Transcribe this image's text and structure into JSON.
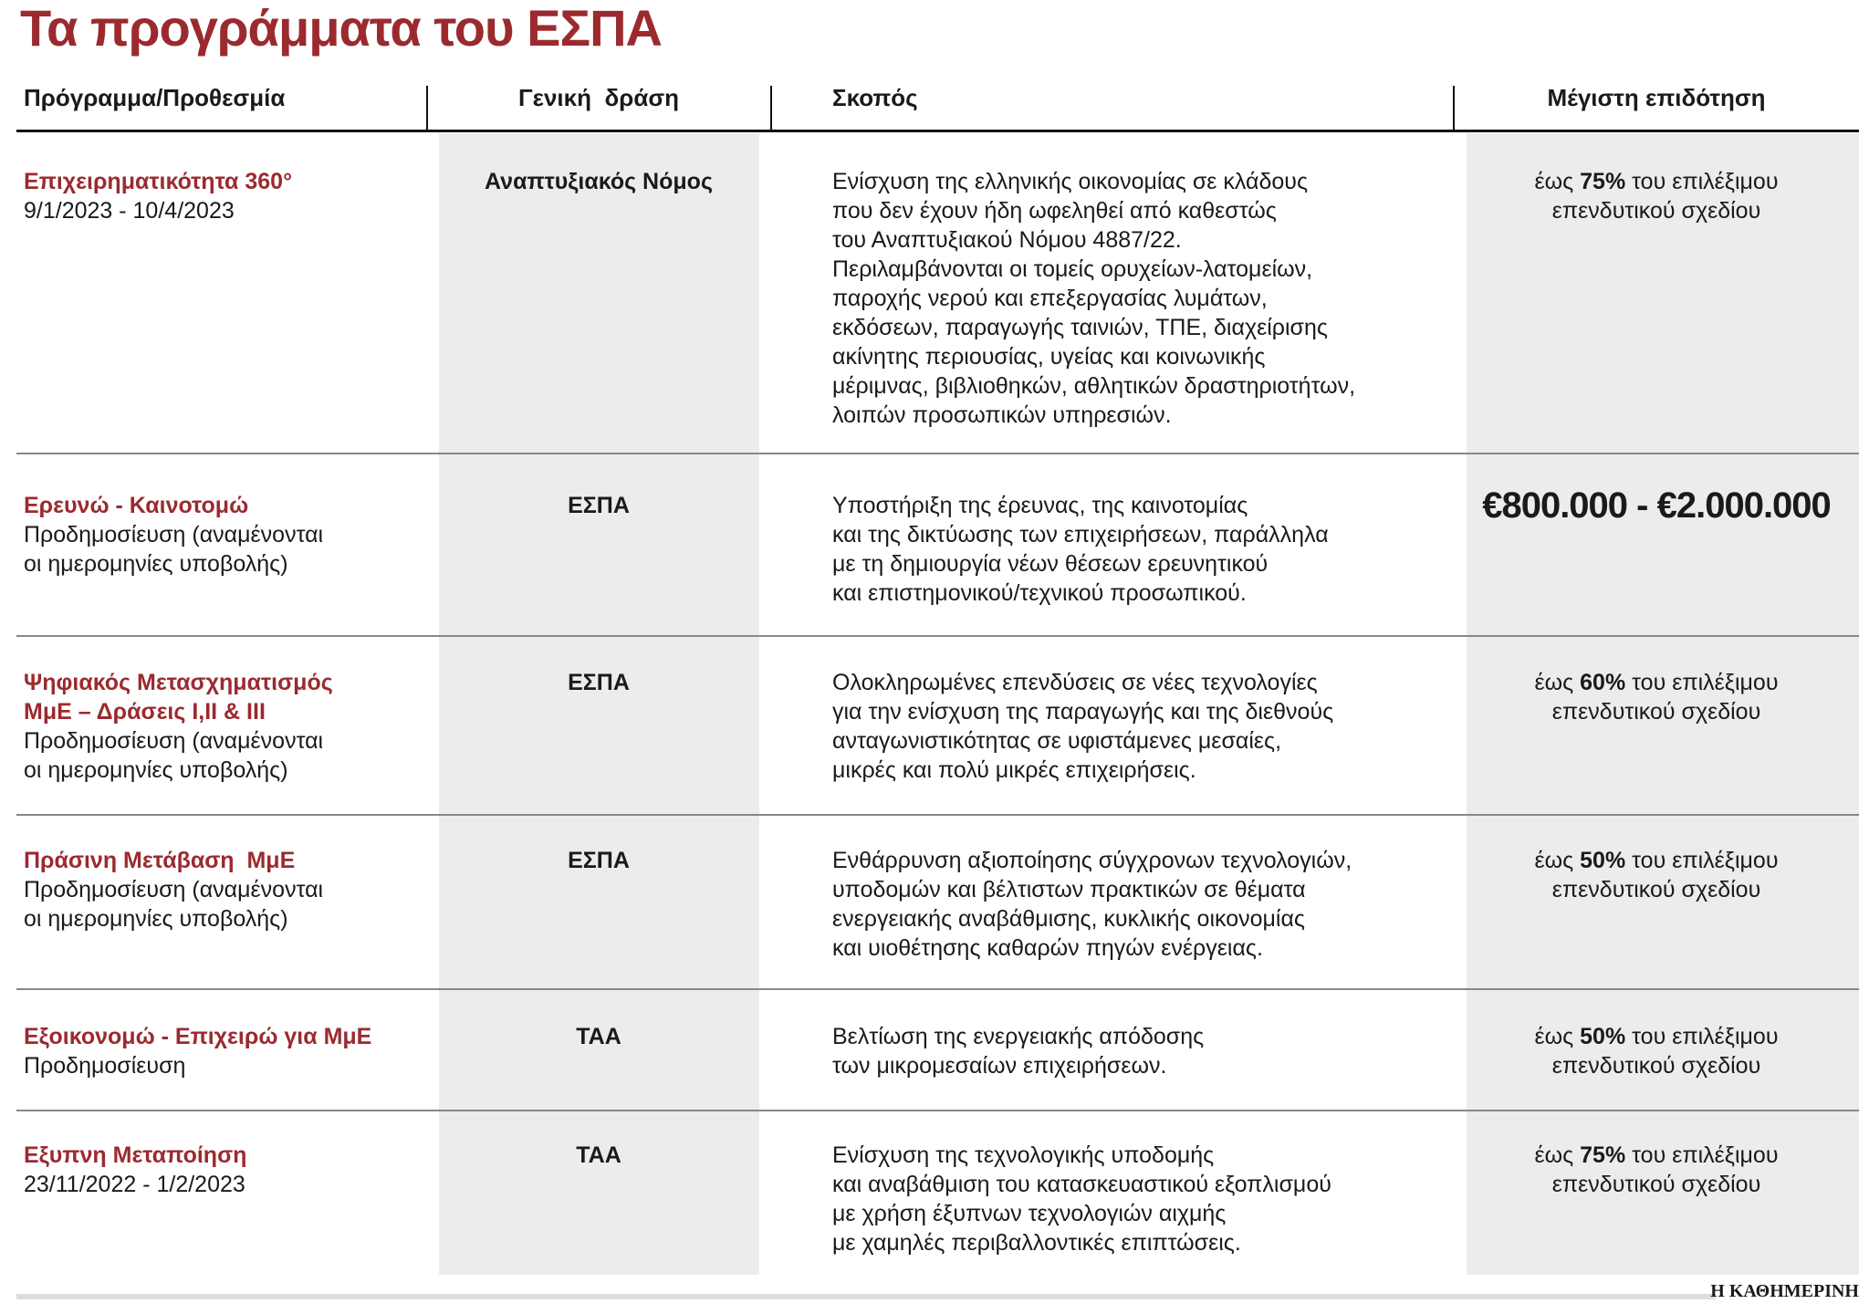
{
  "header": {
    "title": "Τα προγράμματα του ΕΣΠΑ"
  },
  "table": {
    "columns": [
      "Πρόγραμμα/Προθεσμία",
      "Γενική  δράση",
      "Σκοπός",
      "Μέγιστη επιδότηση"
    ],
    "rows": [
      {
        "name": [
          "Επιχειρηματικότητα 360°"
        ],
        "info": [
          "9/1/2023 - 10/4/2023"
        ],
        "action": "Αναπτυξιακός Νόμος",
        "purpose": [
          "Ενίσχυση της ελληνικής οικονομίας σε κλάδους",
          "που δεν έχουν ήδη ωφεληθεί από καθεστώς",
          "του Αναπτυξιακού Νόμου 4887/22.",
          "Περιλαμβάνονται οι τομείς ορυχείων-λατομείων,",
          "παροχής νερού και επεξεργασίας λυμάτων,",
          "εκδόσεων, παραγωγής ταινιών, ΤΠΕ, διαχείρισης",
          "ακίνητης περιουσίας, υγείας και κοινωνικής",
          "μέριμνας, βιβλιοθηκών, αθλητικών δραστηριοτήτων,",
          "λοιπών προσωπικών υπηρεσιών."
        ],
        "subsidy": {
          "prefix": "έως",
          "rate": "75%",
          "suffix": "του επιλέξιμου",
          "line2": "επενδυτικού σχεδίου"
        }
      },
      {
        "name": [
          "Ερευνώ - Καινοτομώ"
        ],
        "info": [
          "Προδημοσίευση (αναμένονται",
          "οι ημερομηνίες υποβολής)"
        ],
        "action": "ΕΣΠΑ",
        "purpose": [
          "Υποστήριξη της έρευνας, της καινοτομίας",
          "και της δικτύωσης των επιχειρήσεων, παράλληλα",
          "με τη δημιουργία νέων θέσεων ερευνητικού",
          "και επιστημονικού/τεχνικού προσωπικού."
        ],
        "amount": "€800.000 - €2.000.000"
      },
      {
        "name": [
          "Ψηφιακός Μετασχηματισμός",
          "ΜμΕ – Δράσεις Ι,ΙΙ & ΙΙΙ"
        ],
        "info": [
          "Προδημοσίευση (αναμένονται",
          "οι ημερομηνίες υποβολής)"
        ],
        "action": "ΕΣΠΑ",
        "purpose": [
          "Ολοκληρωμένες επενδύσεις σε νέες τεχνολογίες",
          "για την ενίσχυση της παραγωγής και της διεθνούς",
          "ανταγωνιστικότητας σε υφιστάμενες μεσαίες,",
          "μικρές και πολύ μικρές επιχειρήσεις."
        ],
        "subsidy": {
          "prefix": "έως",
          "rate": "60%",
          "suffix": "του επιλέξιμου",
          "line2": "επενδυτικού σχεδίου"
        }
      },
      {
        "name": [
          "Πράσινη Μετάβαση  ΜμΕ"
        ],
        "info": [
          "Προδημοσίευση (αναμένονται",
          "οι ημερομηνίες υποβολής)"
        ],
        "action": "ΕΣΠΑ",
        "purpose": [
          "Ενθάρρυνση αξιοποίησης σύγχρονων τεχνολογιών,",
          "υποδομών και βέλτιστων πρακτικών σε θέματα",
          "ενεργειακής αναβάθμισης, κυκλικής οικονομίας",
          "και υιοθέτησης καθαρών πηγών ενέργειας."
        ],
        "subsidy": {
          "prefix": "έως",
          "rate": "50%",
          "suffix": "του επιλέξιμου",
          "line2": "επενδυτικού σχεδίου"
        }
      },
      {
        "name": [
          "Εξοικονομώ - Επιχειρώ για ΜμΕ"
        ],
        "info": [
          "Προδημοσίευση"
        ],
        "action": "ΤΑΑ",
        "purpose": [
          "Βελτίωση της ενεργειακής απόδοσης",
          "των μικρομεσαίων επιχειρήσεων."
        ],
        "subsidy": {
          "prefix": "έως",
          "rate": "50%",
          "suffix": "του επιλέξιμου",
          "line2": "επενδυτικού σχεδίου"
        }
      },
      {
        "name": [
          "Εξυπνη Μεταποίηση"
        ],
        "info": [
          "23/11/2022 - 1/2/2023"
        ],
        "action": "ΤΑΑ",
        "purpose": [
          "Ενίσχυση της τεχνολογικής υποδομής",
          "και αναβάθμιση του κατασκευαστικού εξοπλισμού",
          "με χρήση έξυπνων τεχνολογιών αιχμής",
          "με χαμηλές περιβαλλοντικές επιπτώσεις."
        ],
        "subsidy": {
          "prefix": "έως",
          "rate": "75%",
          "suffix": "του επιλέξιμου",
          "line2": "επενδυτικού σχεδίου"
        }
      }
    ]
  },
  "footer": {
    "source": "Η ΚΑΘΗΜΕΡΙΝΗ"
  }
}
